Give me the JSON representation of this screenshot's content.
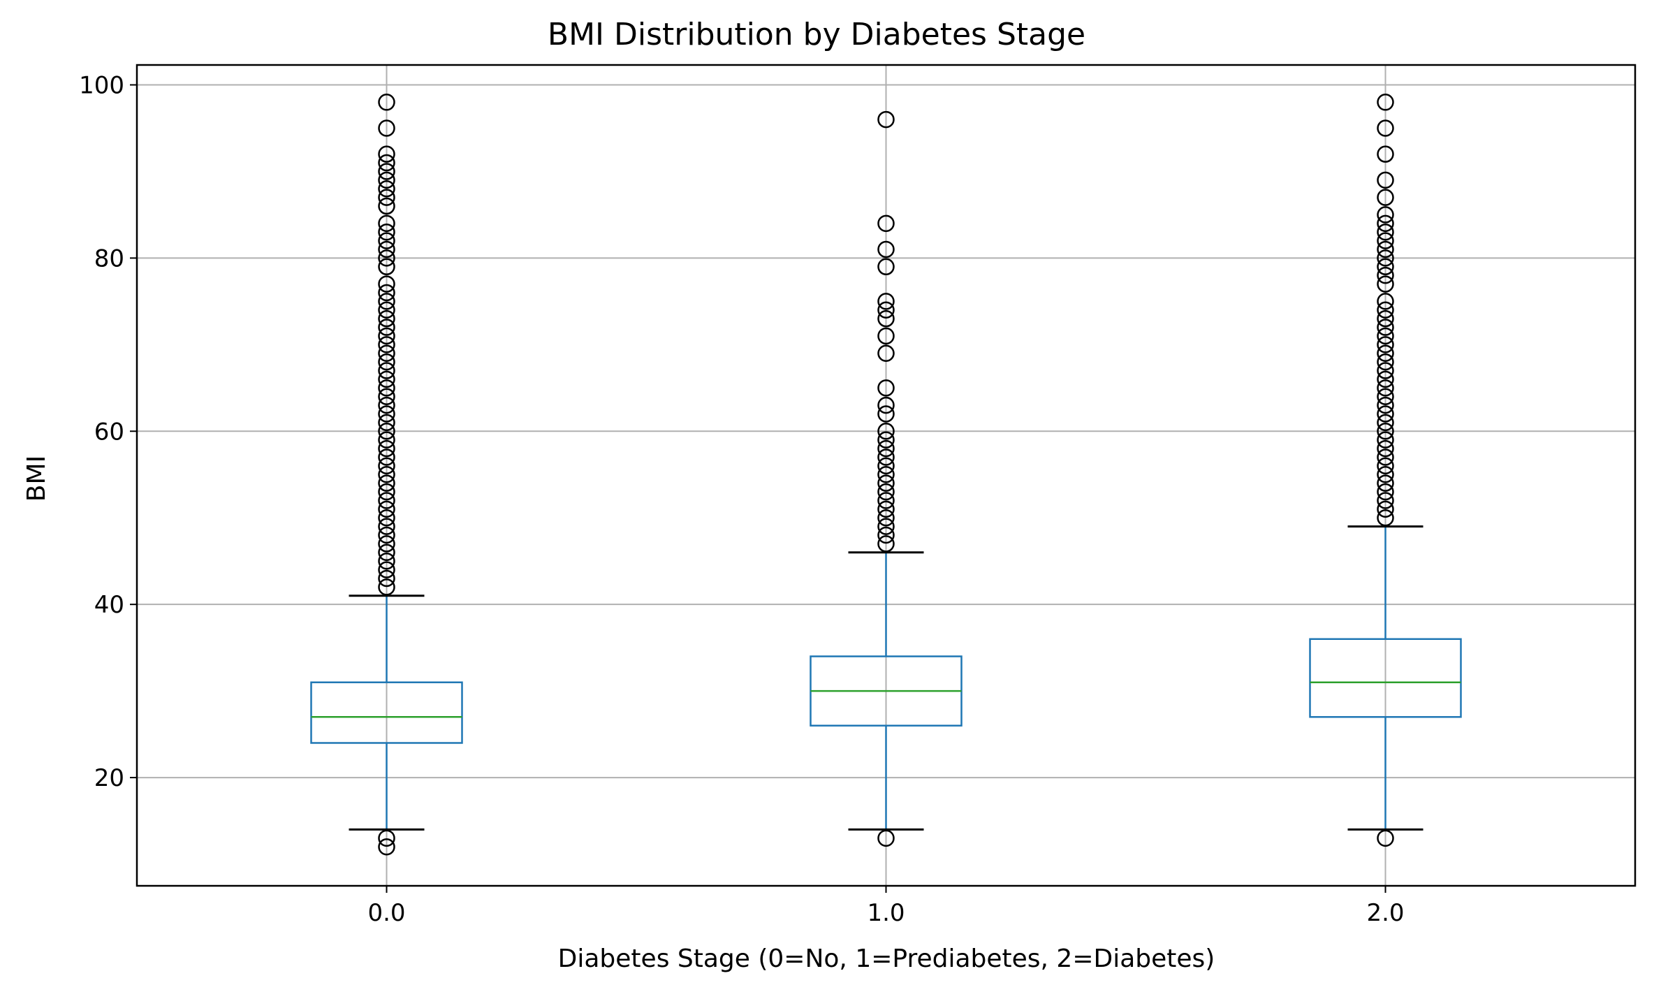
{
  "chart_data": {
    "type": "box",
    "title": "BMI Distribution by Diabetes Stage",
    "xlabel": "Diabetes Stage (0=No, 1=Prediabetes, 2=Diabetes)",
    "ylabel": "BMI",
    "categories": [
      "0.0",
      "1.0",
      "2.0"
    ],
    "ylim": [
      7.5,
      102.3
    ],
    "yticks": [
      20,
      40,
      60,
      80,
      100
    ],
    "grid": true,
    "colors": {
      "box": "#1f77b4",
      "median": "#2ca02c",
      "cap": "#000000",
      "flier": "#000000",
      "grid": "#b0b0b0"
    },
    "boxes": [
      {
        "category": "0.0",
        "whisker_low": 14,
        "q1": 24,
        "median": 27,
        "q3": 31,
        "whisker_high": 41,
        "outliers_low": [
          12,
          13
        ],
        "outliers_high": [
          42,
          43,
          44,
          45,
          46,
          47,
          48,
          49,
          50,
          51,
          52,
          53,
          54,
          55,
          56,
          57,
          58,
          59,
          60,
          61,
          62,
          63,
          64,
          65,
          66,
          67,
          68,
          69,
          70,
          71,
          72,
          73,
          74,
          75,
          76,
          77,
          79,
          80,
          81,
          82,
          83,
          84,
          86,
          87,
          88,
          89,
          90,
          91,
          92,
          95,
          98
        ]
      },
      {
        "category": "1.0",
        "whisker_low": 14,
        "q1": 26,
        "median": 30,
        "q3": 34,
        "whisker_high": 46,
        "outliers_low": [
          13
        ],
        "outliers_high": [
          47,
          48,
          49,
          50,
          51,
          52,
          53,
          54,
          55,
          56,
          57,
          58,
          59,
          60,
          62,
          63,
          65,
          69,
          71,
          73,
          74,
          75,
          79,
          81,
          84,
          96
        ]
      },
      {
        "category": "2.0",
        "whisker_low": 14,
        "q1": 27,
        "median": 31,
        "q3": 36,
        "whisker_high": 49,
        "outliers_low": [
          13
        ],
        "outliers_high": [
          50,
          51,
          52,
          53,
          54,
          55,
          56,
          57,
          58,
          59,
          60,
          61,
          62,
          63,
          64,
          65,
          66,
          67,
          68,
          69,
          70,
          71,
          72,
          73,
          74,
          75,
          77,
          78,
          79,
          80,
          81,
          82,
          83,
          84,
          85,
          87,
          89,
          92,
          95,
          98
        ]
      }
    ]
  }
}
